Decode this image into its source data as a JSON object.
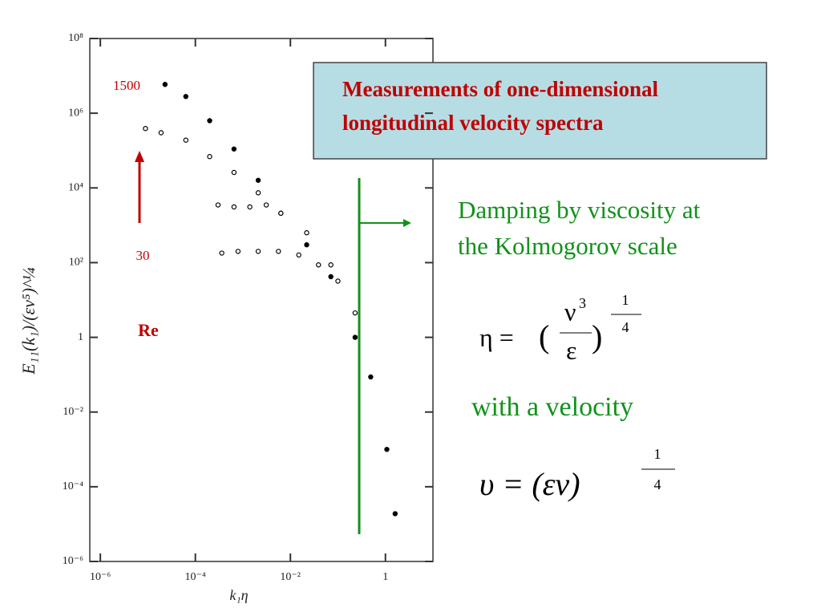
{
  "chart_data": {
    "type": "scatter",
    "xlabel": "k₁η",
    "ylabel": "E₁₁(k₁)/(εν⁵)^¼",
    "log_x": true,
    "log_y": true,
    "xlim": [
      6e-07,
      10
    ],
    "ylim": [
      1e-06,
      100000000.0
    ],
    "xticks": [
      {
        "value": 1e-06,
        "label": "10⁻⁶"
      },
      {
        "value": 0.0001,
        "label": "10⁻⁴"
      },
      {
        "value": 0.01,
        "label": "10⁻²"
      },
      1
    ],
    "yticks": [
      {
        "value": 1e-06,
        "label": "10⁻⁶"
      },
      {
        "value": 0.0001,
        "label": "10⁻⁴"
      },
      {
        "value": 0.01,
        "label": "10⁻²"
      },
      1,
      {
        "value": 100,
        "label": "10²"
      },
      {
        "value": 10000,
        "label": "10⁴"
      },
      {
        "value": 1000000,
        "label": "10⁶"
      },
      {
        "value": 100000000,
        "label": "10⁸"
      }
    ],
    "series": [
      {
        "color": "#000000",
        "x": [
          2.3e-05,
          6.3e-05,
          0.0002,
          0.00065,
          0.0021,
          0.0063,
          0.022,
          0.071,
          0.23,
          0.49,
          1.07,
          1.6
        ],
        "values": [
          5900000.0,
          2800000.0,
          630000.0,
          110000.0,
          16000.0,
          2100.0,
          300,
          42,
          1.0,
          0.087,
          0.001,
          1.9e-05
        ]
      },
      {
        "color": "#000000",
        "x": [
          8.9e-06,
          1.9e-05,
          6.3e-05,
          0.0002,
          0.00065,
          0.0021
        ],
        "values": [
          390000.0,
          300000.0,
          190000.0,
          69000.0,
          26000.0,
          7400.0
        ]
      },
      {
        "color": "#000000",
        "x": [
          0.0003,
          0.00065,
          0.0014,
          0.0031,
          0.0063,
          0.022,
          0.071
        ],
        "values": [
          3500.0,
          3100.0,
          3100.0,
          3500.0,
          2100.0,
          630,
          87
        ]
      },
      {
        "color": "#000000",
        "x": [
          0.00036,
          0.00079,
          0.0021,
          0.0056,
          0.015,
          0.039,
          0.1,
          0.23
        ],
        "values": [
          180,
          200,
          200,
          200,
          160,
          87,
          32,
          4.5
        ]
      }
    ],
    "annotations": {
      "re_high": "1500",
      "re_low": "30",
      "re_label": "Re",
      "box": [
        "Measurements of one-dimensional",
        "longitudinal velocity spectra"
      ],
      "damping": [
        "Damping by viscosity at",
        "the Kolmogorov scale"
      ],
      "velocity": "with a velocity",
      "eta_formula": {
        "lhs": "η =",
        "open": "(",
        "num": "ν",
        "num_exp": "3",
        "den": "ε",
        "close": ")",
        "exp_num": "1",
        "exp_den": "4"
      },
      "v_formula": {
        "lhs": "υ = (εν)",
        "exp_num": "1",
        "exp_den": "4"
      }
    }
  }
}
